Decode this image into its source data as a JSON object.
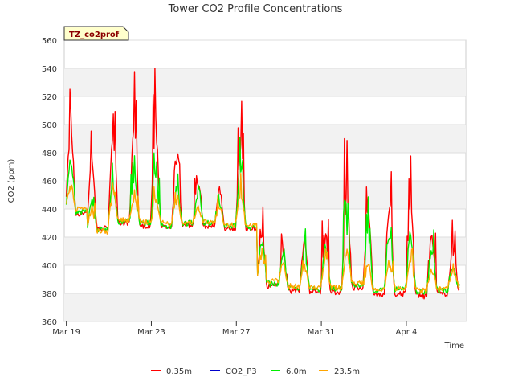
{
  "chart_data": {
    "type": "line",
    "title": "Tower CO2 Profile Concentrations",
    "badge": "TZ_co2prof",
    "xlabel": "Time",
    "ylabel": "CO2 (ppm)",
    "ylim": [
      360,
      560
    ],
    "yticks": [
      360,
      380,
      400,
      420,
      440,
      460,
      480,
      500,
      520,
      540,
      560
    ],
    "xlim": [
      -0.1,
      18.8
    ],
    "xticks": [
      {
        "label": "Mar 19",
        "day": 0
      },
      {
        "label": "Mar 23",
        "day": 4
      },
      {
        "label": "Mar 27",
        "day": 8
      },
      {
        "label": "Mar 31",
        "day": 12
      },
      {
        "label": "Apr 4",
        "day": 16
      }
    ],
    "grid": true,
    "legend_position": "bottom",
    "series": [
      {
        "name": "0.35m",
        "color": "#ff0000",
        "daily_min": [
          437,
          426,
          430,
          428,
          427,
          428,
          428,
          426,
          426,
          385,
          382,
          381,
          381,
          384,
          379,
          380,
          378,
          380,
          383
        ],
        "daily_max": [
          532,
          496,
          531,
          539,
          541,
          514,
          476,
          469,
          516,
          445,
          423,
          437,
          443,
          490,
          486,
          477,
          488,
          445,
          430
        ]
      },
      {
        "name": "CO2_P3",
        "color": "#0000cc",
        "daily_min": [],
        "daily_max": []
      },
      {
        "name": "6.0m",
        "color": "#00ee00",
        "daily_min": [
          438,
          425,
          431,
          430,
          428,
          430,
          430,
          428,
          427,
          387,
          384,
          383,
          383,
          386,
          382,
          383,
          381,
          382,
          385
        ],
        "daily_max": [
          494,
          458,
          472,
          478,
          481,
          468,
          458,
          455,
          493,
          435,
          416,
          425,
          432,
          445,
          447,
          442,
          448,
          426,
          406
        ]
      },
      {
        "name": "23.5m",
        "color": "#ffa500",
        "daily_min": [
          440,
          424,
          432,
          431,
          430,
          431,
          431,
          429,
          428,
          389,
          385,
          384,
          384,
          387,
          383,
          384,
          382,
          383,
          386
        ],
        "daily_max": [
          464,
          446,
          458,
          457,
          456,
          453,
          446,
          448,
          466,
          420,
          410,
          409,
          412,
          422,
          411,
          410,
          412,
          405,
          402
        ]
      }
    ]
  }
}
